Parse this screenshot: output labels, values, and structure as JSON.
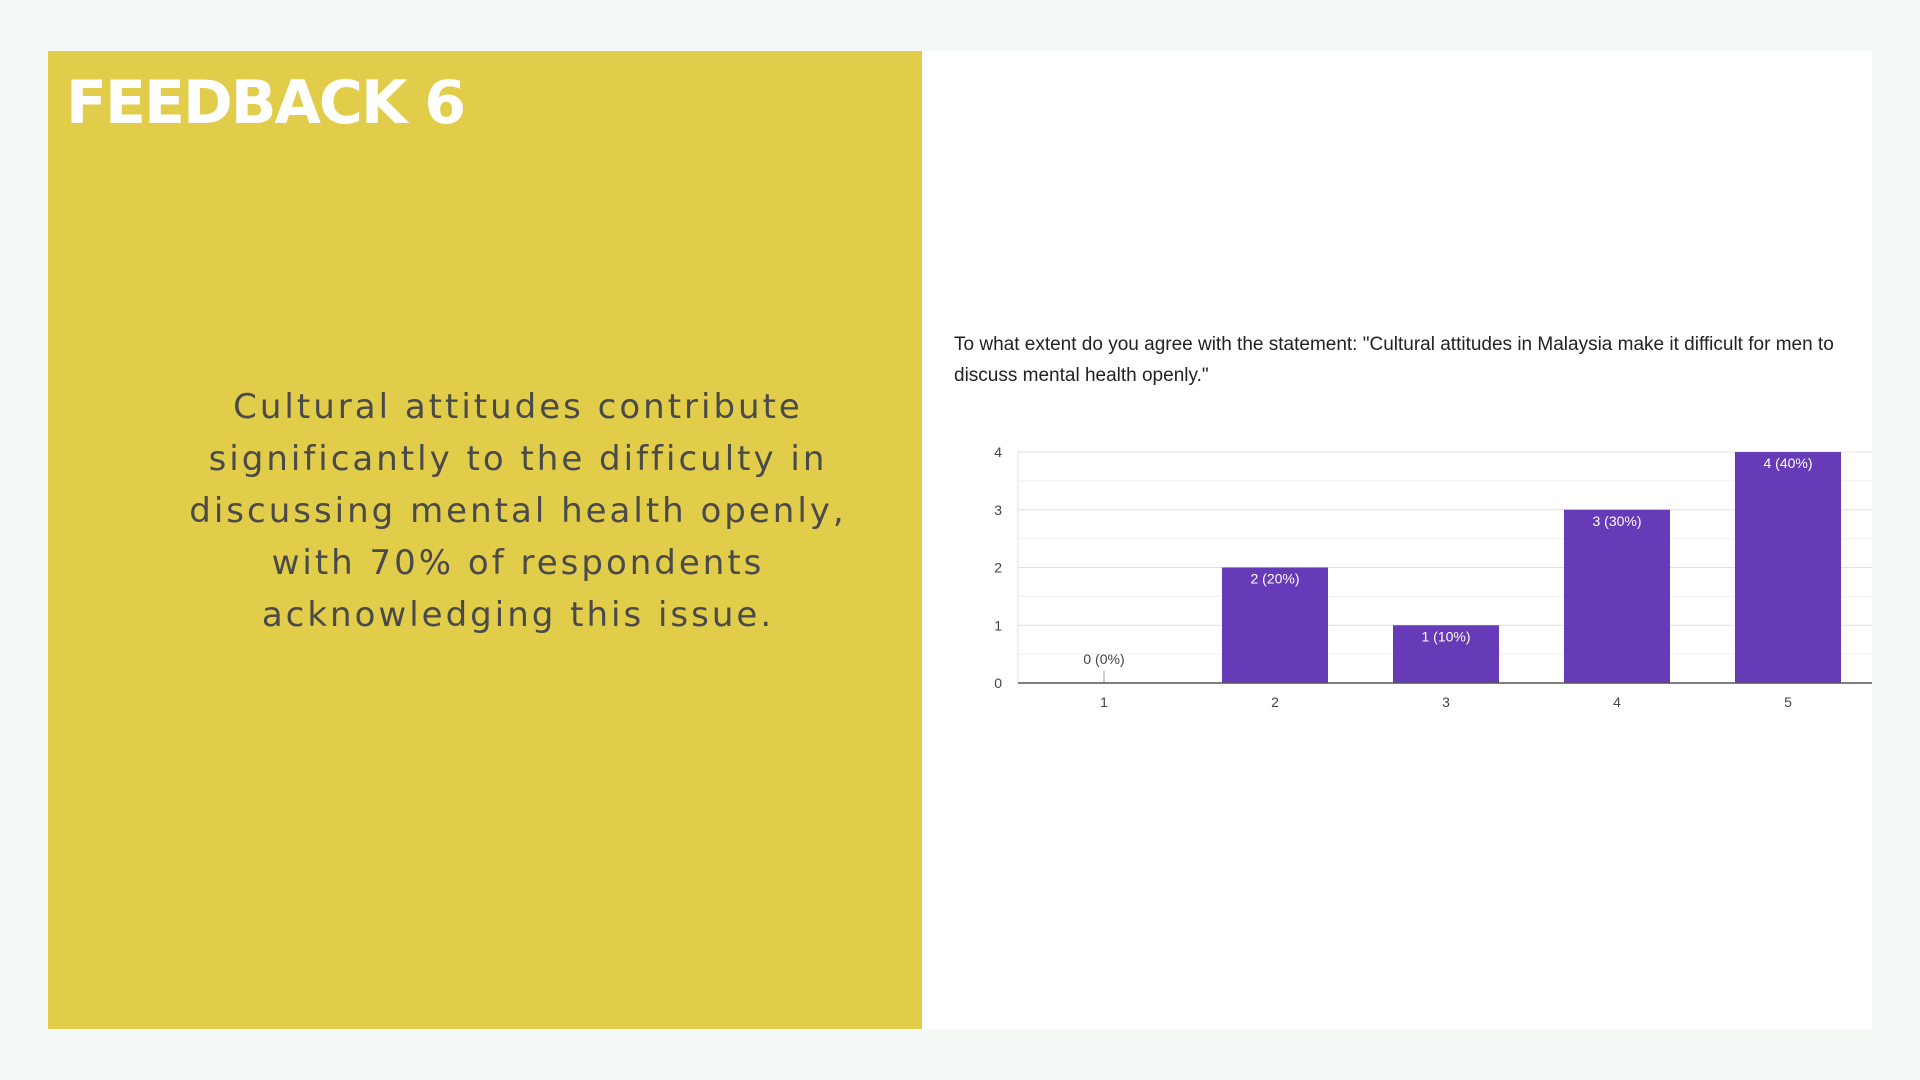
{
  "slide": {
    "title": "FEEDBACK 6",
    "summary": "Cultural attitudes contribute significantly to the difficulty in discussing mental health openly, with 70% of respondents acknowledging this issue."
  },
  "colors": {
    "background": "#f4f9f6",
    "panel": "#e2cd4b",
    "bar": "#673ab7",
    "title_text": "#ffffff",
    "summary_text": "#4a4a4a"
  },
  "chart_data": {
    "type": "bar",
    "title": "To what extent do you agree with the statement: \"Cultural attitudes in Malaysia make it difficult for men to discuss mental health openly.\"",
    "categories": [
      "1",
      "2",
      "3",
      "4",
      "5"
    ],
    "values": [
      0,
      2,
      1,
      3,
      4
    ],
    "data_labels": [
      "0 (0%)",
      "2 (20%)",
      "1 (10%)",
      "3 (30%)",
      "4 (40%)"
    ],
    "yticks": [
      "0",
      "1",
      "2",
      "3",
      "4"
    ],
    "ylim": [
      0,
      4
    ],
    "grid": true,
    "legend": "none"
  }
}
